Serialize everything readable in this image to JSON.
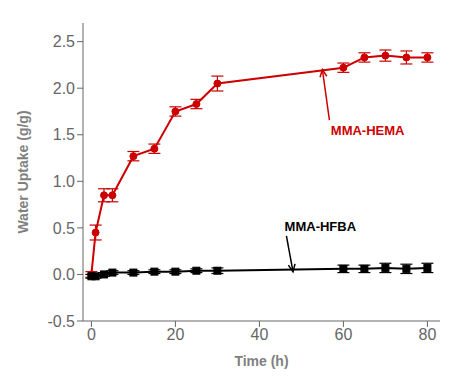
{
  "chart_data": {
    "type": "line",
    "x_label": "Time (h)",
    "y_label": "Water Uptake (g/g)",
    "x": [
      0,
      1,
      3,
      5,
      10,
      15,
      20,
      25,
      30,
      60,
      65,
      70,
      75,
      80
    ],
    "series": [
      {
        "name": "MMA-HEMA",
        "color": "#cc0000",
        "marker": "circle",
        "line_style": "solid",
        "values": [
          0.0,
          0.45,
          0.85,
          0.85,
          1.27,
          1.35,
          1.75,
          1.83,
          2.05,
          2.22,
          2.33,
          2.35,
          2.33,
          2.33
        ],
        "errors": [
          0.03,
          0.08,
          0.07,
          0.07,
          0.05,
          0.05,
          0.05,
          0.05,
          0.08,
          0.05,
          0.05,
          0.06,
          0.07,
          0.05
        ],
        "annotation": {
          "x": 55,
          "y": 2.2,
          "text_x": 57,
          "text_y": 1.55
        }
      },
      {
        "name": "MMA-HFBA",
        "color": "#000000",
        "marker": "square",
        "line_style": "solid",
        "values": [
          -0.02,
          -0.02,
          0.0,
          0.02,
          0.02,
          0.03,
          0.03,
          0.04,
          0.04,
          0.06,
          0.06,
          0.07,
          0.06,
          0.07
        ],
        "errors": [
          0.02,
          0.02,
          0.02,
          0.02,
          0.02,
          0.02,
          0.02,
          0.02,
          0.03,
          0.04,
          0.04,
          0.05,
          0.05,
          0.05
        ],
        "annotation": {
          "x": 48,
          "y": 0.03,
          "text_x": 46,
          "text_y": 0.52
        }
      }
    ],
    "xlim": [
      -2,
      83
    ],
    "ylim": [
      -0.5,
      2.7
    ],
    "xticks": [
      0,
      20,
      40,
      60,
      80
    ],
    "yticks": [
      -0.5,
      {
        "value": 0.0,
        "label": "0.0"
      },
      0.5,
      {
        "value": 1.0,
        "label": "1.0"
      },
      1.5,
      {
        "value": 2.0,
        "label": "2.0"
      },
      2.5
    ],
    "grid": false
  }
}
